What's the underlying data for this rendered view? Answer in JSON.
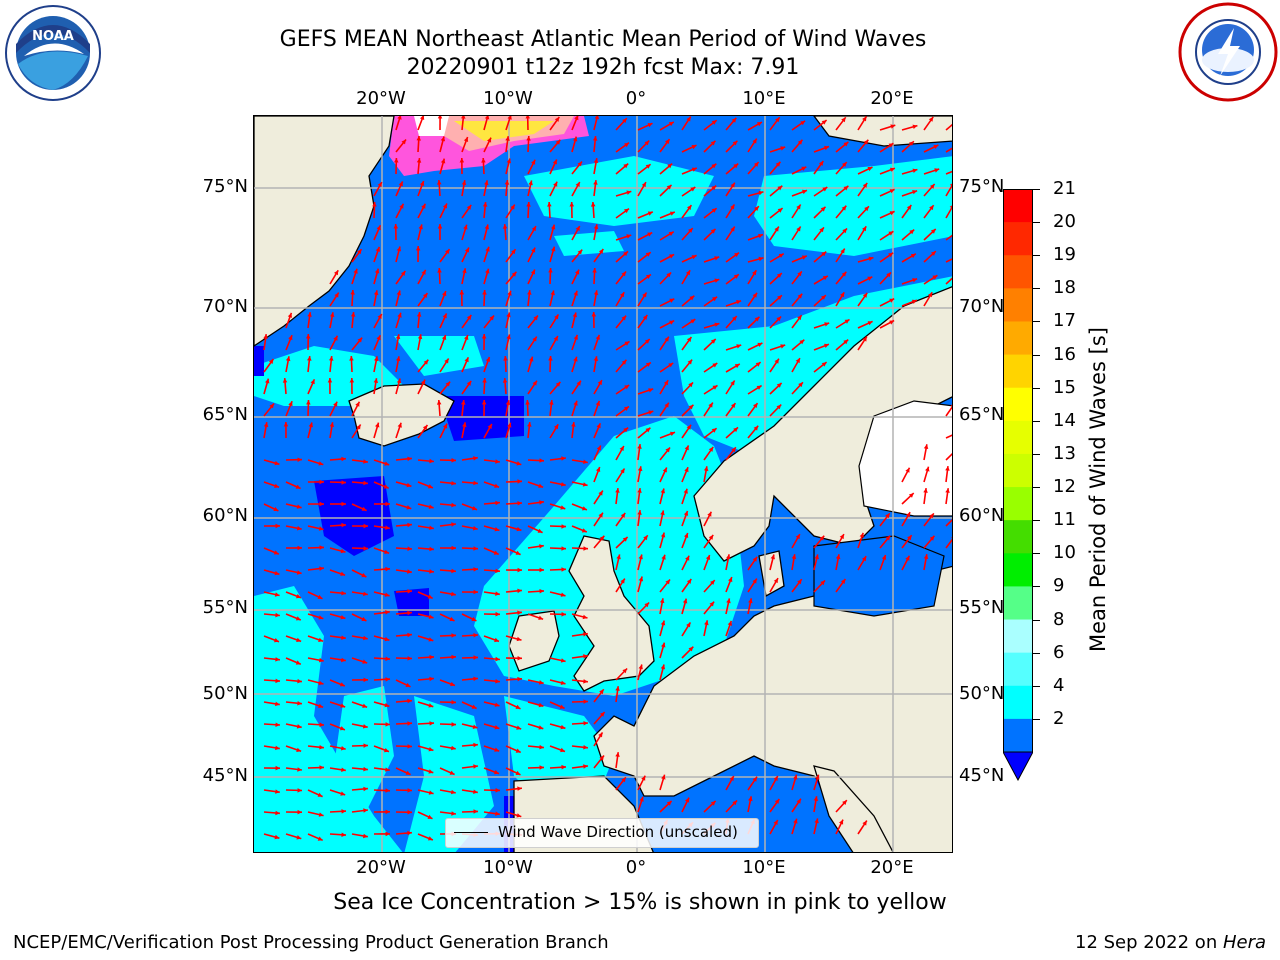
{
  "title": {
    "line1": "GEFS MEAN Northeast Atlantic Mean Period of Wind Waves",
    "line2": "20220901 t12z 192h fcst   Max: 7.91"
  },
  "map": {
    "lon_labels": [
      "20°W",
      "10°W",
      "0°",
      "10°E",
      "20°E"
    ],
    "lat_labels": [
      "75°N",
      "70°N",
      "65°N",
      "60°N",
      "55°N",
      "50°N",
      "45°N"
    ],
    "colors": {
      "land": "#efeddc",
      "ocean_low": "#0073ff",
      "ocean_mid": "#00ffff",
      "ocean_very_low": "#0000ff",
      "arrow": "#ff0000",
      "grid": "#b3b3b3"
    },
    "legend": {
      "label": "Wind Wave Direction (unscaled)"
    }
  },
  "colorbar": {
    "label": "Mean Period of Wind Waves [s]",
    "ticks": [
      "21",
      "20",
      "19",
      "18",
      "17",
      "16",
      "15",
      "14",
      "13",
      "12",
      "11",
      "10",
      "9",
      "8",
      "6",
      "4",
      "2"
    ],
    "colors": [
      "#ff0000",
      "#ff2800",
      "#ff5500",
      "#ff8000",
      "#ffaa00",
      "#ffd400",
      "#ffff00",
      "#e6ff00",
      "#ccff00",
      "#99ff00",
      "#44dd00",
      "#00ee00",
      "#55ff88",
      "#aaffff",
      "#55ffff",
      "#00ffff",
      "#0073ff"
    ],
    "under_color": "#0000ff"
  },
  "note": "Sea Ice Concentration > 15% is shown in pink to yellow",
  "footer": {
    "left": "NCEP/EMC/Verification Post Processing Product Generation Branch",
    "date": "12 Sep 2022 on ",
    "host": "Hera"
  },
  "logos": {
    "left_icon": "noaa-logo",
    "right_icon": "nws-logo"
  }
}
